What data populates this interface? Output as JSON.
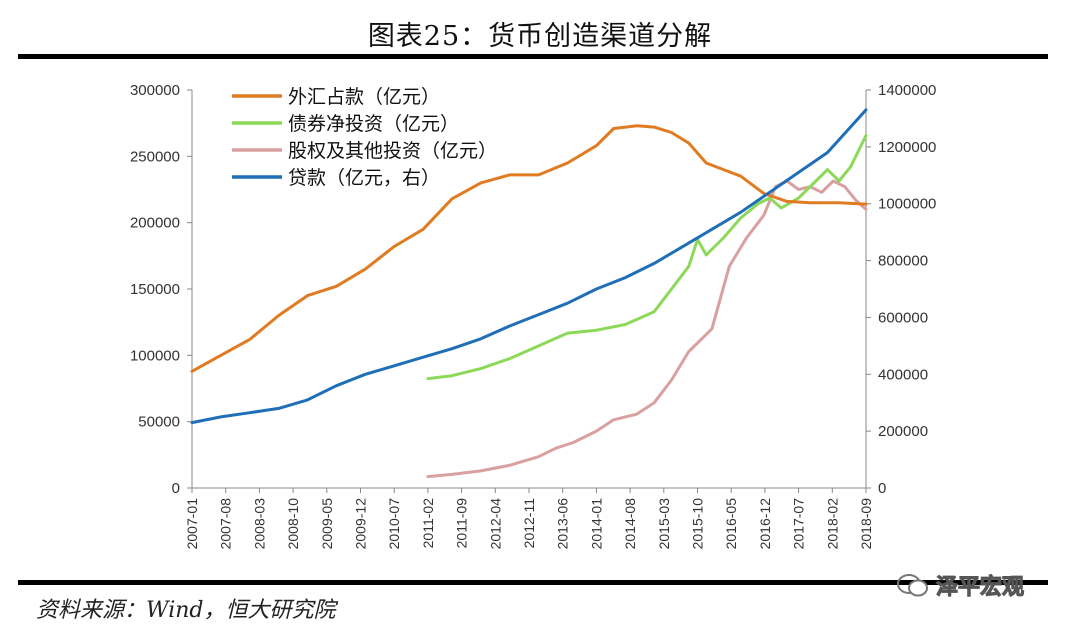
{
  "header": {
    "title": "图表25：货币创造渠道分解"
  },
  "footer": {
    "source": "资料来源：Wind，恒大研究院",
    "watermark": "泽平宏观"
  },
  "colors": {
    "fx": "#E07B22",
    "bond": "#8CD95A",
    "equity": "#D9A0A0",
    "loan": "#1F6FB8"
  },
  "chart_data": {
    "type": "line",
    "title": "图表25：货币创造渠道分解",
    "x_ticks": [
      "2007-01",
      "2007-08",
      "2008-03",
      "2008-10",
      "2009-05",
      "2009-12",
      "2010-07",
      "2011-02",
      "2011-09",
      "2012-04",
      "2012-11",
      "2013-06",
      "2014-01",
      "2014-08",
      "2015-03",
      "2015-10",
      "2016-05",
      "2016-12",
      "2017-07",
      "2018-02",
      "2018-09"
    ],
    "x_range": [
      2007.0,
      2018.667
    ],
    "y_left": {
      "range": [
        0,
        300000
      ],
      "ticks": [
        "0",
        "50000",
        "100000",
        "150000",
        "200000",
        "250000",
        "300000"
      ]
    },
    "y_right": {
      "range": [
        0,
        1400000
      ],
      "ticks": [
        "0",
        "200000",
        "400000",
        "600000",
        "800000",
        "1000000",
        "1200000",
        "1400000"
      ]
    },
    "series": [
      {
        "name": "外汇占款（亿元）",
        "axis": "left",
        "color_key": "fx",
        "points": [
          [
            2007.0,
            88000
          ],
          [
            2007.5,
            100000
          ],
          [
            2008.0,
            112000
          ],
          [
            2008.5,
            130000
          ],
          [
            2009.0,
            145000
          ],
          [
            2009.5,
            152000
          ],
          [
            2010.0,
            165000
          ],
          [
            2010.5,
            182000
          ],
          [
            2011.0,
            195000
          ],
          [
            2011.5,
            218000
          ],
          [
            2012.0,
            230000
          ],
          [
            2012.5,
            236000
          ],
          [
            2013.0,
            236000
          ],
          [
            2013.5,
            245000
          ],
          [
            2014.0,
            258000
          ],
          [
            2014.3,
            271000
          ],
          [
            2014.7,
            273000
          ],
          [
            2015.0,
            272000
          ],
          [
            2015.3,
            268000
          ],
          [
            2015.6,
            260000
          ],
          [
            2015.9,
            245000
          ],
          [
            2016.2,
            240000
          ],
          [
            2016.5,
            235000
          ],
          [
            2016.9,
            222000
          ],
          [
            2017.3,
            216000
          ],
          [
            2017.7,
            215000
          ],
          [
            2018.2,
            215000
          ],
          [
            2018.667,
            214000
          ]
        ]
      },
      {
        "name": "债券净投资（亿元）",
        "axis": "right",
        "color_key": "bond",
        "points": [
          [
            2011.083,
            385000
          ],
          [
            2011.5,
            395000
          ],
          [
            2012.0,
            420000
          ],
          [
            2012.5,
            455000
          ],
          [
            2013.0,
            500000
          ],
          [
            2013.5,
            545000
          ],
          [
            2014.0,
            555000
          ],
          [
            2014.5,
            575000
          ],
          [
            2015.0,
            620000
          ],
          [
            2015.3,
            700000
          ],
          [
            2015.6,
            780000
          ],
          [
            2015.75,
            875000
          ],
          [
            2015.9,
            820000
          ],
          [
            2016.2,
            880000
          ],
          [
            2016.5,
            950000
          ],
          [
            2016.8,
            1000000
          ],
          [
            2017.0,
            1020000
          ],
          [
            2017.2,
            985000
          ],
          [
            2017.5,
            1020000
          ],
          [
            2017.8,
            1080000
          ],
          [
            2018.0,
            1120000
          ],
          [
            2018.2,
            1080000
          ],
          [
            2018.4,
            1130000
          ],
          [
            2018.667,
            1240000
          ]
        ]
      },
      {
        "name": "股权及其他投资（亿元）",
        "axis": "right",
        "color_key": "equity",
        "points": [
          [
            2011.083,
            40000
          ],
          [
            2011.5,
            48000
          ],
          [
            2012.0,
            60000
          ],
          [
            2012.5,
            80000
          ],
          [
            2013.0,
            110000
          ],
          [
            2013.3,
            140000
          ],
          [
            2013.6,
            160000
          ],
          [
            2014.0,
            200000
          ],
          [
            2014.3,
            240000
          ],
          [
            2014.7,
            260000
          ],
          [
            2015.0,
            300000
          ],
          [
            2015.3,
            380000
          ],
          [
            2015.6,
            480000
          ],
          [
            2015.8,
            520000
          ],
          [
            2016.0,
            560000
          ],
          [
            2016.3,
            780000
          ],
          [
            2016.6,
            880000
          ],
          [
            2016.9,
            960000
          ],
          [
            2017.1,
            1060000
          ],
          [
            2017.3,
            1080000
          ],
          [
            2017.5,
            1050000
          ],
          [
            2017.7,
            1060000
          ],
          [
            2017.9,
            1040000
          ],
          [
            2018.1,
            1080000
          ],
          [
            2018.3,
            1060000
          ],
          [
            2018.5,
            1010000
          ],
          [
            2018.667,
            980000
          ]
        ]
      },
      {
        "name": "贷款（亿元，右）",
        "axis": "right",
        "color_key": "loan",
        "points": [
          [
            2007.0,
            230000
          ],
          [
            2007.5,
            250000
          ],
          [
            2008.0,
            265000
          ],
          [
            2008.5,
            280000
          ],
          [
            2009.0,
            310000
          ],
          [
            2009.5,
            360000
          ],
          [
            2010.0,
            400000
          ],
          [
            2010.5,
            430000
          ],
          [
            2011.0,
            460000
          ],
          [
            2011.5,
            490000
          ],
          [
            2012.0,
            525000
          ],
          [
            2012.5,
            570000
          ],
          [
            2013.0,
            610000
          ],
          [
            2013.5,
            650000
          ],
          [
            2014.0,
            700000
          ],
          [
            2014.5,
            740000
          ],
          [
            2015.0,
            790000
          ],
          [
            2015.5,
            850000
          ],
          [
            2016.0,
            910000
          ],
          [
            2016.5,
            970000
          ],
          [
            2017.0,
            1040000
          ],
          [
            2017.5,
            1110000
          ],
          [
            2018.0,
            1180000
          ],
          [
            2018.667,
            1330000
          ]
        ]
      }
    ]
  }
}
